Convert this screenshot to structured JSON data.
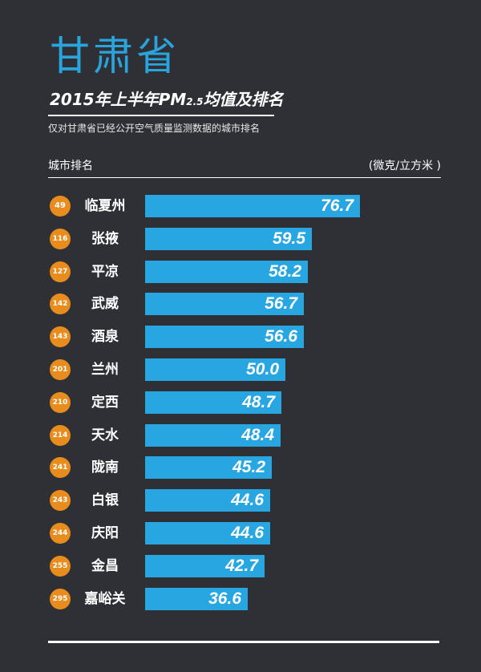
{
  "header": {
    "province": "甘肃省",
    "title_main": "2015年上半年PM",
    "title_sub": "2.5",
    "title_tail": "均值及排名",
    "subtitle": "仅对甘肃省已经公开空气质量监测数据的城市排名",
    "col_left": "城市排名",
    "col_right": "(微克/立方米 )"
  },
  "colors": {
    "bar": "#27a6e2",
    "badge": "#e98c1e",
    "accent": "#2aa4dc",
    "background": "#2e3036"
  },
  "chart_data": {
    "type": "bar",
    "orientation": "horizontal",
    "categories": [
      "临夏州",
      "张掖",
      "平凉",
      "武威",
      "酒泉",
      "兰州",
      "定西",
      "天水",
      "陇南",
      "白银",
      "庆阳",
      "金昌",
      "嘉峪关"
    ],
    "ranks": [
      "49",
      "116",
      "127",
      "142",
      "143",
      "201",
      "210",
      "214",
      "241",
      "243",
      "244",
      "255",
      "295"
    ],
    "values": [
      76.7,
      59.5,
      58.2,
      56.7,
      56.6,
      50.0,
      48.7,
      48.4,
      45.2,
      44.6,
      44.6,
      42.7,
      36.6
    ],
    "value_labels": [
      "76.7",
      "59.5",
      "58.2",
      "56.7",
      "56.6",
      "50.0",
      "48.7",
      "48.4",
      "45.2",
      "44.6",
      "44.6",
      "42.7",
      "36.6"
    ],
    "xlim": [
      0,
      76.7
    ],
    "grid": false,
    "legend": "none"
  }
}
